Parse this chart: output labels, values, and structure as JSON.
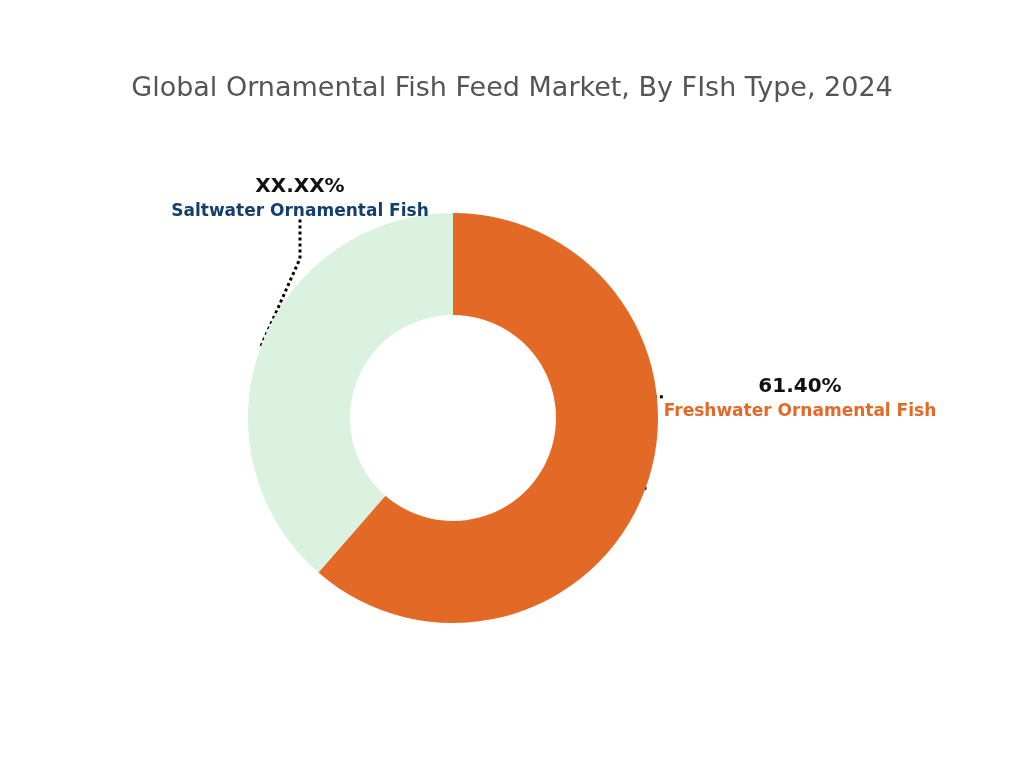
{
  "chart_data": {
    "type": "donut",
    "title": "Global Ornamental Fish Feed Market, By FIsh Type, 2024",
    "categories": [
      "Freshwater Ornamental Fish",
      "Saltwater Ornamental Fish"
    ],
    "values": [
      61.4,
      38.6
    ],
    "value_labels": [
      "61.40%",
      "XX.XX%"
    ],
    "colors": [
      "#e36a26",
      "#daf2df"
    ],
    "legend": false
  }
}
